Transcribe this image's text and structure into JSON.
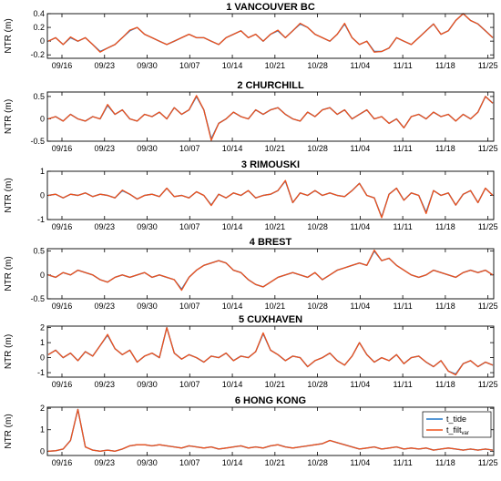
{
  "colors": {
    "tide": "#1f77c8",
    "filt": "#f0511a",
    "axis": "#000000"
  },
  "legend": {
    "tide_label": "t_tide",
    "filt_label": "t_filt",
    "filt_sub": "var"
  },
  "chart_data": [
    {
      "type": "line",
      "title": "1 VANCOUVER BC",
      "ylabel": "NTR (m)",
      "xticks": [
        "09/16",
        "09/23",
        "09/30",
        "10/07",
        "10/14",
        "10/21",
        "10/28",
        "11/04",
        "11/11",
        "11/18",
        "11/25"
      ],
      "yticks": [
        "-0.2",
        "0",
        "0.2",
        "0.4"
      ],
      "ylim": [
        -0.25,
        0.4
      ],
      "series": [
        {
          "name": "t_tide",
          "values": [
            0.0,
            0.05,
            -0.05,
            0.05,
            0.0,
            0.05,
            -0.05,
            -0.15,
            -0.1,
            -0.05,
            0.05,
            0.15,
            0.2,
            0.1,
            0.05,
            0.0,
            -0.05,
            0.0,
            0.05,
            0.1,
            0.05,
            0.05,
            0.0,
            -0.05,
            0.05,
            0.1,
            0.15,
            0.05,
            0.1,
            0.0,
            0.1,
            0.15,
            0.05,
            0.15,
            0.25,
            0.2,
            0.1,
            0.05,
            0.0,
            0.1,
            0.25,
            0.05,
            -0.05,
            0.0,
            -0.15,
            -0.15,
            -0.1,
            0.05,
            0.0,
            -0.05,
            0.05,
            0.15,
            0.25,
            0.1,
            0.15,
            0.3,
            0.4,
            0.3,
            0.25,
            0.15,
            0.05
          ]
        },
        {
          "name": "t_filt",
          "values": [
            0.0,
            0.05,
            -0.05,
            0.06,
            0.0,
            0.05,
            -0.05,
            -0.16,
            -0.1,
            -0.05,
            0.05,
            0.16,
            0.2,
            0.1,
            0.05,
            0.0,
            -0.05,
            0.0,
            0.05,
            0.1,
            0.05,
            0.05,
            0.0,
            -0.05,
            0.05,
            0.1,
            0.15,
            0.05,
            0.1,
            0.0,
            0.1,
            0.16,
            0.05,
            0.15,
            0.26,
            0.2,
            0.1,
            0.05,
            0.0,
            0.1,
            0.26,
            0.05,
            -0.05,
            0.0,
            -0.16,
            -0.15,
            -0.1,
            0.05,
            0.0,
            -0.05,
            0.05,
            0.15,
            0.25,
            0.1,
            0.15,
            0.3,
            0.4,
            0.3,
            0.25,
            0.15,
            0.05
          ]
        }
      ]
    },
    {
      "type": "line",
      "title": "2 CHURCHILL",
      "ylabel": "NTR (m)",
      "xticks": [
        "09/16",
        "09/23",
        "09/30",
        "10/07",
        "10/14",
        "10/21",
        "10/28",
        "11/04",
        "11/11",
        "11/18",
        "11/25"
      ],
      "yticks": [
        "-0.5",
        "0",
        "0.5"
      ],
      "ylim": [
        -0.5,
        0.6
      ],
      "series": [
        {
          "name": "t_tide",
          "values": [
            0.0,
            0.05,
            -0.05,
            0.1,
            0.0,
            -0.05,
            0.05,
            0.0,
            0.3,
            0.1,
            0.2,
            0.0,
            -0.05,
            0.1,
            0.05,
            0.15,
            0.0,
            0.25,
            0.1,
            0.2,
            0.5,
            0.2,
            -0.45,
            -0.1,
            0.0,
            0.15,
            0.05,
            0.0,
            0.2,
            0.1,
            0.2,
            0.25,
            0.1,
            0.0,
            -0.05,
            0.15,
            0.05,
            0.2,
            0.25,
            0.1,
            0.2,
            0.0,
            0.1,
            0.2,
            0.0,
            0.05,
            -0.1,
            0.0,
            -0.2,
            0.05,
            0.1,
            0.0,
            0.15,
            0.05,
            0.1,
            -0.05,
            0.1,
            0.0,
            0.15,
            0.5,
            0.35
          ]
        },
        {
          "name": "t_filt",
          "values": [
            0.0,
            0.05,
            -0.05,
            0.1,
            0.0,
            -0.05,
            0.05,
            0.0,
            0.32,
            0.1,
            0.2,
            0.0,
            -0.05,
            0.1,
            0.05,
            0.15,
            0.0,
            0.25,
            0.1,
            0.2,
            0.52,
            0.2,
            -0.48,
            -0.1,
            0.0,
            0.15,
            0.05,
            0.0,
            0.2,
            0.1,
            0.2,
            0.25,
            0.1,
            0.0,
            -0.05,
            0.15,
            0.05,
            0.2,
            0.25,
            0.1,
            0.2,
            0.0,
            0.1,
            0.2,
            0.0,
            0.05,
            -0.1,
            0.0,
            -0.2,
            0.05,
            0.1,
            0.0,
            0.15,
            0.05,
            0.1,
            -0.05,
            0.1,
            0.0,
            0.15,
            0.5,
            0.35
          ]
        }
      ]
    },
    {
      "type": "line",
      "title": "3 RIMOUSKI",
      "ylabel": "NTR (m)",
      "xticks": [
        "09/16",
        "09/23",
        "09/30",
        "10/07",
        "10/14",
        "10/21",
        "10/28",
        "11/04",
        "11/11",
        "11/18",
        "11/25"
      ],
      "yticks": [
        "-1",
        "0",
        "1"
      ],
      "ylim": [
        -1,
        1
      ],
      "series": [
        {
          "name": "t_tide",
          "values": [
            0.0,
            0.05,
            -0.1,
            0.05,
            0.0,
            0.1,
            -0.05,
            0.05,
            0.0,
            -0.1,
            0.2,
            0.05,
            -0.15,
            0.0,
            0.05,
            -0.05,
            0.3,
            -0.05,
            0.0,
            -0.1,
            0.15,
            0.0,
            -0.4,
            0.05,
            -0.1,
            0.1,
            0.0,
            0.2,
            -0.1,
            0.0,
            0.05,
            0.2,
            0.6,
            -0.3,
            0.1,
            0.0,
            0.2,
            0.0,
            0.1,
            0.0,
            -0.05,
            0.2,
            0.5,
            0.0,
            -0.1,
            -0.9,
            0.05,
            0.3,
            -0.2,
            0.1,
            0.0,
            -0.7,
            0.2,
            0.0,
            0.1,
            -0.4,
            0.05,
            0.2,
            -0.3,
            0.3,
            0.0
          ]
        },
        {
          "name": "t_filt",
          "values": [
            0.0,
            0.05,
            -0.1,
            0.05,
            0.0,
            0.1,
            -0.05,
            0.05,
            0.0,
            -0.1,
            0.22,
            0.05,
            -0.15,
            0.0,
            0.05,
            -0.05,
            0.3,
            -0.05,
            0.0,
            -0.1,
            0.15,
            0.0,
            -0.42,
            0.05,
            -0.1,
            0.1,
            0.0,
            0.2,
            -0.1,
            0.0,
            0.05,
            0.2,
            0.62,
            -0.3,
            0.1,
            0.0,
            0.2,
            0.0,
            0.1,
            0.0,
            -0.05,
            0.2,
            0.5,
            0.0,
            -0.1,
            -0.92,
            0.05,
            0.3,
            -0.2,
            0.1,
            0.0,
            -0.75,
            0.2,
            0.0,
            0.1,
            -0.4,
            0.05,
            0.2,
            -0.3,
            0.3,
            0.0
          ]
        }
      ]
    },
    {
      "type": "line",
      "title": "4 BREST",
      "ylabel": "NTR (m)",
      "xticks": [
        "09/16",
        "09/23",
        "09/30",
        "10/07",
        "10/14",
        "10/21",
        "10/28",
        "11/04",
        "11/11",
        "11/18",
        "11/25"
      ],
      "yticks": [
        "-0.5",
        "0",
        "0.5"
      ],
      "ylim": [
        -0.5,
        0.55
      ],
      "series": [
        {
          "name": "t_tide",
          "values": [
            0.0,
            -0.05,
            0.05,
            0.0,
            0.1,
            0.05,
            0.0,
            -0.1,
            -0.15,
            -0.05,
            0.0,
            -0.05,
            0.0,
            0.05,
            -0.05,
            0.0,
            -0.05,
            -0.1,
            -0.3,
            -0.05,
            0.1,
            0.2,
            0.25,
            0.3,
            0.25,
            0.1,
            0.05,
            -0.1,
            -0.2,
            -0.25,
            -0.15,
            -0.05,
            0.0,
            0.05,
            0.0,
            -0.05,
            0.05,
            -0.1,
            0.0,
            0.1,
            0.15,
            0.2,
            0.25,
            0.2,
            0.5,
            0.3,
            0.35,
            0.2,
            0.1,
            0.0,
            -0.05,
            0.0,
            0.1,
            0.05,
            0.0,
            -0.05,
            0.05,
            0.1,
            0.05,
            0.1,
            0.0
          ]
        },
        {
          "name": "t_filt",
          "values": [
            0.0,
            -0.05,
            0.05,
            0.0,
            0.1,
            0.05,
            0.0,
            -0.1,
            -0.15,
            -0.05,
            0.0,
            -0.05,
            0.0,
            0.05,
            -0.05,
            0.0,
            -0.05,
            -0.1,
            -0.32,
            -0.05,
            0.1,
            0.2,
            0.25,
            0.3,
            0.25,
            0.1,
            0.05,
            -0.1,
            -0.2,
            -0.25,
            -0.15,
            -0.05,
            0.0,
            0.05,
            0.0,
            -0.05,
            0.05,
            -0.1,
            0.0,
            0.1,
            0.15,
            0.2,
            0.25,
            0.2,
            0.52,
            0.3,
            0.35,
            0.2,
            0.1,
            0.0,
            -0.05,
            0.0,
            0.1,
            0.05,
            0.0,
            -0.05,
            0.05,
            0.1,
            0.05,
            0.1,
            0.0
          ]
        }
      ]
    },
    {
      "type": "line",
      "title": "5 CUXHAVEN",
      "ylabel": "NTR (m)",
      "xticks": [
        "09/16",
        "09/23",
        "09/30",
        "10/07",
        "10/14",
        "10/21",
        "10/28",
        "11/04",
        "11/11",
        "11/18",
        "11/25"
      ],
      "yticks": [
        "-1",
        "0",
        "1",
        "2"
      ],
      "ylim": [
        -1.3,
        2.1
      ],
      "series": [
        {
          "name": "t_tide",
          "values": [
            0.2,
            0.5,
            0.0,
            0.3,
            -0.2,
            0.4,
            0.1,
            0.8,
            1.5,
            0.6,
            0.2,
            0.5,
            -0.3,
            0.1,
            0.3,
            0.0,
            2.0,
            0.3,
            -0.1,
            0.2,
            0.0,
            -0.3,
            0.1,
            0.0,
            0.3,
            -0.2,
            0.1,
            0.0,
            0.4,
            1.6,
            0.5,
            0.2,
            -0.2,
            0.1,
            0.0,
            -0.6,
            -0.2,
            0.0,
            0.3,
            -0.2,
            -0.5,
            0.1,
            1.0,
            0.2,
            -0.3,
            0.0,
            -0.2,
            0.2,
            -0.4,
            0.0,
            0.1,
            -0.3,
            -0.6,
            -0.2,
            -0.9,
            -1.1,
            -0.4,
            -0.2,
            -0.6,
            -0.3,
            -0.5
          ]
        },
        {
          "name": "t_filt",
          "values": [
            0.2,
            0.5,
            0.0,
            0.3,
            -0.2,
            0.4,
            0.1,
            0.8,
            1.55,
            0.6,
            0.2,
            0.5,
            -0.3,
            0.1,
            0.3,
            0.0,
            2.0,
            0.3,
            -0.1,
            0.2,
            0.0,
            -0.3,
            0.1,
            0.0,
            0.3,
            -0.2,
            0.1,
            0.0,
            0.4,
            1.65,
            0.5,
            0.2,
            -0.2,
            0.1,
            0.0,
            -0.6,
            -0.2,
            0.0,
            0.3,
            -0.2,
            -0.5,
            0.1,
            1.0,
            0.2,
            -0.3,
            0.0,
            -0.2,
            0.2,
            -0.4,
            0.0,
            0.1,
            -0.3,
            -0.6,
            -0.2,
            -0.9,
            -1.15,
            -0.4,
            -0.2,
            -0.6,
            -0.3,
            -0.5
          ]
        }
      ]
    },
    {
      "type": "line",
      "title": "6 HONG KONG",
      "ylabel": "NTR (m)",
      "xticks": [
        "09/16",
        "09/23",
        "09/30",
        "10/07",
        "10/14",
        "10/21",
        "10/28",
        "11/04",
        "11/11",
        "11/18",
        "11/25"
      ],
      "yticks": [
        "0",
        "1",
        "2"
      ],
      "ylim": [
        -0.2,
        2.05
      ],
      "series": [
        {
          "name": "t_tide",
          "values": [
            0.0,
            0.02,
            0.1,
            0.5,
            1.95,
            0.2,
            0.05,
            0.0,
            0.05,
            0.0,
            0.1,
            0.25,
            0.3,
            0.3,
            0.25,
            0.3,
            0.25,
            0.2,
            0.15,
            0.25,
            0.2,
            0.15,
            0.2,
            0.1,
            0.15,
            0.2,
            0.25,
            0.15,
            0.2,
            0.15,
            0.25,
            0.3,
            0.2,
            0.15,
            0.2,
            0.25,
            0.3,
            0.35,
            0.5,
            0.4,
            0.3,
            0.2,
            0.1,
            0.15,
            0.2,
            0.1,
            0.15,
            0.2,
            0.1,
            0.15,
            0.1,
            0.15,
            0.05,
            0.1,
            0.15,
            0.1,
            0.05,
            0.1,
            0.05,
            0.1,
            0.05
          ]
        },
        {
          "name": "t_filt",
          "values": [
            0.0,
            0.02,
            0.1,
            0.5,
            1.95,
            0.2,
            0.05,
            0.0,
            0.05,
            0.0,
            0.1,
            0.25,
            0.3,
            0.3,
            0.25,
            0.3,
            0.25,
            0.2,
            0.15,
            0.25,
            0.2,
            0.15,
            0.2,
            0.1,
            0.15,
            0.2,
            0.25,
            0.15,
            0.2,
            0.15,
            0.25,
            0.3,
            0.2,
            0.15,
            0.2,
            0.25,
            0.3,
            0.35,
            0.5,
            0.4,
            0.3,
            0.2,
            0.1,
            0.15,
            0.2,
            0.1,
            0.15,
            0.2,
            0.1,
            0.15,
            0.1,
            0.15,
            0.05,
            0.1,
            0.15,
            0.1,
            0.05,
            0.1,
            0.05,
            0.1,
            0.05
          ]
        }
      ]
    }
  ]
}
